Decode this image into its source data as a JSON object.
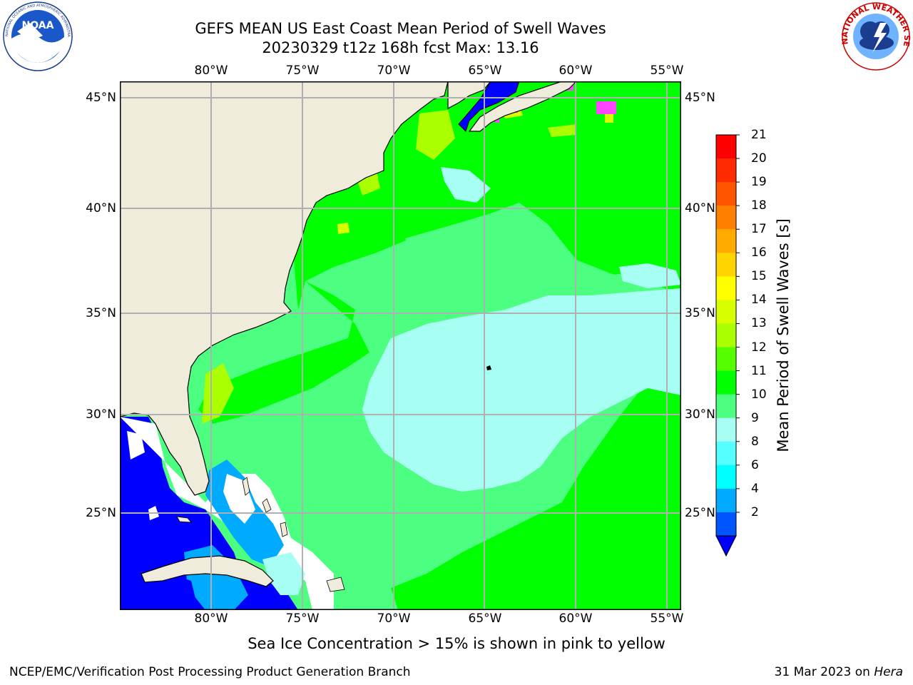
{
  "title": {
    "line1": "GEFS MEAN US East Coast Mean Period of Swell Waves",
    "line2": "20230329 t12z 168h fcst   Max: 13.16"
  },
  "lon_labels": [
    "80°W",
    "75°W",
    "70°W",
    "65°W",
    "60°W",
    "55°W"
  ],
  "lat_labels": [
    "45°N",
    "40°N",
    "35°N",
    "30°N",
    "25°N"
  ],
  "colorbar": {
    "label": "Mean Period of Swell Waves [s]",
    "ticks": [
      "21",
      "20",
      "19",
      "18",
      "17",
      "16",
      "15",
      "14",
      "13",
      "12",
      "11",
      "10",
      "9",
      "8",
      "6",
      "4",
      "2"
    ],
    "colors": [
      "#ff0000",
      "#ff2a00",
      "#ff5500",
      "#ff8000",
      "#ffab00",
      "#ffd400",
      "#ffff00",
      "#d8ff00",
      "#aaff00",
      "#55ff00",
      "#00ff00",
      "#4dff80",
      "#a6fff2",
      "#55ffff",
      "#00ffff",
      "#00aaff",
      "#0055ff"
    ],
    "extend_color": "#0000ff"
  },
  "note": "Sea Ice Concentration > 15% is shown in pink to yellow",
  "footer": {
    "left": "NCEP/EMC/Verification Post Processing Product Generation Branch",
    "date": "31 Mar 2023 on ",
    "machine": "Hera"
  },
  "logos": {
    "left_text": "NOAA",
    "left_ring": "NATIONAL OCEANIC AND ATMOSPHERIC ADMINISTRATION · U.S. DEPARTMENT OF COMMERCE",
    "right_ring": "NATIONAL WEATHER SERVICE"
  },
  "map_colors": {
    "land": "#efecdc",
    "grid": "#b0b0b0",
    "deep": "#0000ff",
    "light_cyan": "#a6fff2",
    "mid_green": "#4dff80",
    "green": "#00ff00",
    "lime": "#55ff00",
    "yellowgreen": "#aaff00",
    "yellow": "#d8ff00",
    "ice_pink": "#ff44ff"
  }
}
